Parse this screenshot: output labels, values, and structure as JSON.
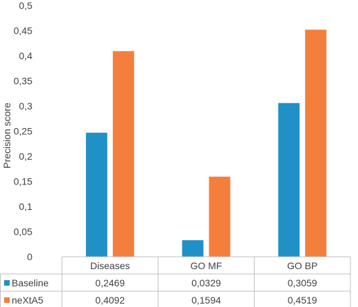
{
  "chart_data": {
    "type": "bar",
    "ylabel": "Precision score",
    "ylim": [
      0,
      0.5
    ],
    "yticks": [
      "0",
      "0,05",
      "0,1",
      "0,15",
      "0,2",
      "0,25",
      "0,3",
      "0,35",
      "0,4",
      "0,45",
      "0,5"
    ],
    "ytick_values": [
      0,
      0.05,
      0.1,
      0.15,
      0.2,
      0.25,
      0.3,
      0.35,
      0.4,
      0.45,
      0.5
    ],
    "grid": false,
    "legend": "data-table",
    "categories": [
      "Diseases",
      "GO MF",
      "GO BP"
    ],
    "series": [
      {
        "name": "Baseline",
        "color": "#1f91c6",
        "values": [
          0.2469,
          0.0329,
          0.3059
        ],
        "labels": [
          "0,2469",
          "0,0329",
          "0,3059"
        ]
      },
      {
        "name": "neXtA5",
        "color": "#f47f3c",
        "values": [
          0.4092,
          0.1594,
          0.4519
        ],
        "labels": [
          "0,4092",
          "0,1594",
          "0,4519"
        ]
      }
    ]
  }
}
